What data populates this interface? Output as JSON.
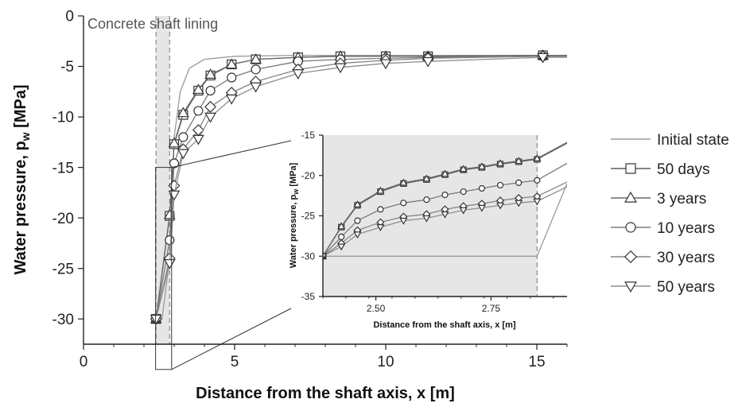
{
  "chart_data": [
    {
      "type": "line",
      "title": "",
      "xlabel": "Distance from the shaft axis, x [m]",
      "ylabel": "Water pressure, p",
      "ylabel_sub": "w",
      "ylabel_unit": " [MPa]",
      "xlim": [
        0,
        16
      ],
      "ylim": [
        -32.5,
        0
      ],
      "xticks": [
        0,
        5,
        10,
        15
      ],
      "yticks": [
        0,
        -5,
        -10,
        -15,
        -20,
        -25,
        -30
      ],
      "annotation": "Concrete shaft lining",
      "lining_band": [
        2.4,
        2.85
      ],
      "legend_position": "right",
      "series": [
        {
          "name": "Initial state",
          "marker": "none",
          "x": [
            2.4,
            2.6,
            2.85,
            3.0,
            3.2,
            3.5,
            4.0,
            5.0,
            7.0,
            10.0,
            16.0
          ],
          "y": [
            -30,
            -30,
            -24,
            -12,
            -7.5,
            -5.2,
            -4.3,
            -4.0,
            -3.9,
            -3.9,
            -3.9
          ]
        },
        {
          "name": "50 days",
          "marker": "square",
          "x": [
            2.4,
            2.85,
            3.0,
            3.3,
            3.8,
            4.2,
            4.9,
            5.7,
            7.1,
            8.5,
            10.0,
            11.4,
            15.2,
            16.0
          ],
          "y": [
            -30,
            -19.8,
            -12.7,
            -9.8,
            -7.4,
            -5.9,
            -4.8,
            -4.3,
            -4.1,
            -4.0,
            -4.0,
            -4.0,
            -3.9,
            -3.9
          ]
        },
        {
          "name": "3 years",
          "marker": "triangle-up",
          "x": [
            2.4,
            2.85,
            3.0,
            3.3,
            3.8,
            4.2,
            4.9,
            5.7,
            7.1,
            8.5,
            10.0,
            11.4,
            15.2,
            16.0
          ],
          "y": [
            -30,
            -19.7,
            -12.6,
            -9.6,
            -7.3,
            -5.8,
            -4.8,
            -4.3,
            -4.1,
            -4.0,
            -4.0,
            -4.0,
            -3.9,
            -3.9
          ]
        },
        {
          "name": "10 years",
          "marker": "circle",
          "x": [
            2.4,
            2.85,
            3.0,
            3.3,
            3.8,
            4.2,
            4.9,
            5.7,
            7.1,
            8.5,
            10.0,
            11.4,
            15.2,
            16.0
          ],
          "y": [
            -30,
            -22.2,
            -14.6,
            -12.0,
            -9.4,
            -7.4,
            -6.1,
            -5.3,
            -4.5,
            -4.3,
            -4.2,
            -4.1,
            -4.0,
            -4.0
          ]
        },
        {
          "name": "30 years",
          "marker": "diamond",
          "x": [
            2.4,
            2.85,
            3.0,
            3.3,
            3.8,
            4.2,
            4.9,
            5.7,
            7.1,
            8.5,
            10.0,
            11.4,
            15.2,
            16.0
          ],
          "y": [
            -30,
            -24.0,
            -16.8,
            -13.2,
            -11.3,
            -9.0,
            -7.6,
            -6.5,
            -5.3,
            -4.7,
            -4.4,
            -4.2,
            -4.0,
            -4.0
          ]
        },
        {
          "name": "50 years",
          "marker": "triangle-down",
          "x": [
            2.4,
            2.85,
            3.0,
            3.3,
            3.8,
            4.2,
            4.9,
            5.7,
            7.1,
            8.5,
            10.0,
            11.4,
            15.2,
            16.0
          ],
          "y": [
            -30,
            -24.5,
            -17.7,
            -13.6,
            -12.2,
            -10.0,
            -8.2,
            -7.0,
            -5.7,
            -5.1,
            -4.7,
            -4.5,
            -4.1,
            -4.1
          ]
        }
      ]
    },
    {
      "type": "line",
      "title": "",
      "xlabel": "Distance from the shaft axis, x [m]",
      "ylabel": "Water pressure, p",
      "ylabel_sub": "w",
      "ylabel_unit": " [MPa]",
      "xlim": [
        2.385,
        2.915
      ],
      "ylim": [
        -35,
        -15
      ],
      "xticks": [
        2.5,
        2.75
      ],
      "xtick_labels": [
        "2.50",
        "2.75"
      ],
      "yticks": [
        -15,
        -20,
        -25,
        -30,
        -35
      ],
      "lining_band": [
        2.385,
        2.85
      ],
      "series": [
        {
          "name": "Initial state",
          "marker": "none",
          "x": [
            2.385,
            2.85,
            2.915
          ],
          "y": [
            -30,
            -30,
            -21.0
          ]
        },
        {
          "name": "50 days",
          "marker": "square",
          "x": [
            2.385,
            2.425,
            2.46,
            2.51,
            2.56,
            2.61,
            2.65,
            2.69,
            2.73,
            2.77,
            2.81,
            2.85,
            2.915
          ],
          "y": [
            -30,
            -26.4,
            -23.7,
            -22.0,
            -21.0,
            -20.5,
            -19.9,
            -19.3,
            -19.0,
            -18.6,
            -18.3,
            -18.0,
            -16.0
          ]
        },
        {
          "name": "3 years",
          "marker": "triangle-up",
          "x": [
            2.385,
            2.425,
            2.46,
            2.51,
            2.56,
            2.61,
            2.65,
            2.69,
            2.73,
            2.77,
            2.81,
            2.85,
            2.915
          ],
          "y": [
            -30,
            -26.3,
            -23.6,
            -21.9,
            -20.9,
            -20.4,
            -19.8,
            -19.2,
            -18.9,
            -18.5,
            -18.2,
            -17.9,
            -15.9
          ]
        },
        {
          "name": "10 years",
          "marker": "circle",
          "x": [
            2.385,
            2.425,
            2.46,
            2.51,
            2.56,
            2.61,
            2.65,
            2.69,
            2.73,
            2.77,
            2.81,
            2.85,
            2.915
          ],
          "y": [
            -30,
            -27.6,
            -25.6,
            -24.2,
            -23.4,
            -23.0,
            -22.4,
            -22.0,
            -21.6,
            -21.2,
            -20.9,
            -20.6,
            -18.5
          ]
        },
        {
          "name": "30 years",
          "marker": "diamond",
          "x": [
            2.385,
            2.425,
            2.46,
            2.51,
            2.56,
            2.61,
            2.65,
            2.69,
            2.73,
            2.77,
            2.81,
            2.85,
            2.915
          ],
          "y": [
            -30,
            -28.4,
            -26.8,
            -25.8,
            -25.1,
            -24.8,
            -24.2,
            -23.8,
            -23.5,
            -23.1,
            -22.8,
            -22.6,
            -20.8
          ]
        },
        {
          "name": "50 years",
          "marker": "triangle-down",
          "x": [
            2.385,
            2.425,
            2.46,
            2.51,
            2.56,
            2.61,
            2.65,
            2.69,
            2.73,
            2.77,
            2.81,
            2.85,
            2.915
          ],
          "y": [
            -30,
            -28.8,
            -27.3,
            -26.4,
            -25.6,
            -25.3,
            -24.8,
            -24.3,
            -24.0,
            -23.7,
            -23.4,
            -23.2,
            -21.4
          ]
        }
      ]
    }
  ]
}
